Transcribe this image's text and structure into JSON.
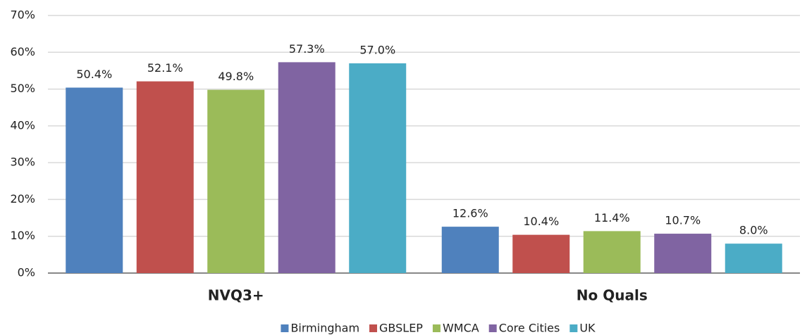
{
  "chart_data": {
    "type": "bar",
    "categories": [
      "NVQ3+",
      "No Quals"
    ],
    "series": [
      {
        "name": "Birmingham",
        "color": "#4f81bd",
        "values": [
          50.4,
          12.6
        ],
        "value_labels": [
          "50.4%",
          "12.6%"
        ]
      },
      {
        "name": "GBSLEP",
        "color": "#c0504d",
        "values": [
          52.1,
          10.4
        ],
        "value_labels": [
          "52.1%",
          "10.4%"
        ]
      },
      {
        "name": "WMCA",
        "color": "#9bbb59",
        "values": [
          49.8,
          11.4
        ],
        "value_labels": [
          "49.8%",
          "11.4%"
        ]
      },
      {
        "name": "Core Cities",
        "color": "#8064a2",
        "values": [
          57.3,
          10.7
        ],
        "value_labels": [
          "57.3%",
          "10.7%"
        ]
      },
      {
        "name": "UK",
        "color": "#4bacc6",
        "values": [
          57.0,
          8.0
        ],
        "value_labels": [
          "57.0%",
          "8.0%"
        ]
      }
    ],
    "ylim": [
      0,
      70
    ],
    "yticks": [
      {
        "value": 0,
        "label": "0%"
      },
      {
        "value": 10,
        "label": "10%"
      },
      {
        "value": 20,
        "label": "20%"
      },
      {
        "value": 30,
        "label": "30%"
      },
      {
        "value": 40,
        "label": "40%"
      },
      {
        "value": 50,
        "label": "50%"
      },
      {
        "value": 60,
        "label": "60%"
      },
      {
        "value": 70,
        "label": "70%"
      }
    ],
    "grid": true,
    "legend": "bottom"
  }
}
